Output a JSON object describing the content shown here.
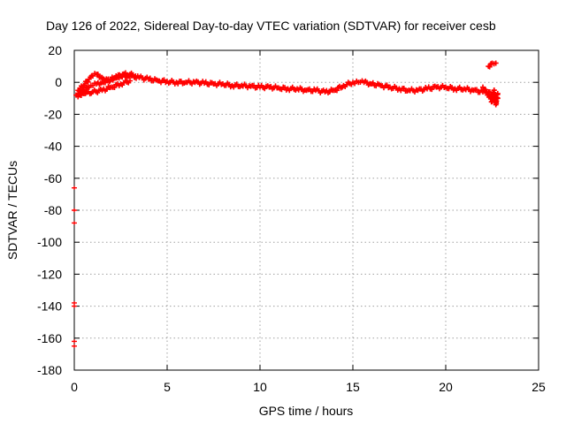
{
  "chart_data": {
    "type": "scatter",
    "title": "Day 126 of 2022, Sidereal Day-to-day VTEC variation (SDTVAR) for receiver cesb",
    "xlabel": "GPS time / hours",
    "ylabel": "SDTVAR / TECUs",
    "xlim": [
      0,
      25
    ],
    "ylim": [
      -180,
      20
    ],
    "xticks": [
      0,
      5,
      10,
      15,
      20,
      25
    ],
    "yticks": [
      20,
      0,
      -20,
      -40,
      -60,
      -80,
      -100,
      -120,
      -140,
      -160,
      -180
    ],
    "xtick_labels": [
      "0",
      "5",
      "10",
      "15",
      "20",
      "25"
    ],
    "ytick_labels": [
      "20",
      "0",
      "-20",
      "-40",
      "-60",
      "-80",
      "-100",
      "-120",
      "-140",
      "-160",
      "-180"
    ],
    "grid": true,
    "marker": "plus",
    "series": [
      {
        "name": "main-trace",
        "color": "#ff0000",
        "x": [
          0.2,
          0.5,
          0.8,
          1.0,
          1.2,
          1.5,
          2.0,
          2.5,
          3.0,
          3.5,
          4.0,
          4.5,
          5.0,
          5.5,
          6.0,
          6.5,
          7.0,
          7.5,
          8.0,
          8.5,
          9.0,
          9.5,
          10.0,
          10.5,
          11.0,
          11.5,
          12.0,
          12.5,
          13.0,
          13.5,
          14.0,
          14.5,
          15.0,
          15.3,
          15.6,
          16.0,
          16.5,
          17.0,
          17.5,
          18.0,
          18.5,
          19.0,
          19.5,
          20.0,
          20.5,
          21.0,
          21.5,
          22.0,
          22.3,
          22.6,
          22.8
        ],
        "y": [
          -7,
          -5,
          -3,
          -2,
          -1,
          0,
          2,
          4,
          4,
          3,
          2,
          1,
          0.5,
          0,
          0,
          0,
          -0.5,
          -1,
          -1,
          -2,
          -2,
          -2.5,
          -3,
          -3,
          -3.5,
          -4,
          -4,
          -5,
          -5,
          -6,
          -5,
          -2,
          0,
          0,
          0,
          -1,
          -2,
          -3,
          -4,
          -5,
          -5,
          -4,
          -3,
          -3,
          -4,
          -4,
          -5,
          -6,
          -6,
          -8,
          -10
        ]
      },
      {
        "name": "early-upper-branch",
        "color": "#ff0000",
        "x": [
          0.2,
          0.5,
          0.8,
          1.0,
          1.2,
          1.5,
          1.8,
          2.2,
          2.6,
          3.0,
          3.3
        ],
        "y": [
          -5,
          -2,
          2,
          4,
          5,
          3,
          1,
          3,
          5,
          5,
          4
        ]
      },
      {
        "name": "early-lower-branch",
        "color": "#ff0000",
        "x": [
          0.1,
          0.3,
          0.6,
          1.0,
          1.5,
          2.0,
          2.5,
          3.0
        ],
        "y": [
          -8,
          -8,
          -7,
          -6,
          -5,
          -3,
          -1,
          1
        ]
      },
      {
        "name": "late-spikes",
        "color": "#ff0000",
        "x": [
          22.0,
          22.3,
          22.5,
          22.6,
          22.7,
          22.8
        ],
        "y": [
          -3,
          -8,
          -12,
          -5,
          -14,
          -7
        ]
      },
      {
        "name": "late-positive-cluster",
        "color": "#ff0000",
        "x": [
          22.3,
          22.5,
          22.7
        ],
        "y": [
          10,
          12,
          12
        ]
      },
      {
        "name": "outliers-at-zero",
        "color": "#ff0000",
        "x": [
          0,
          0,
          0,
          0,
          0,
          0,
          0
        ],
        "y": [
          -66,
          -80,
          -88,
          -138,
          -140,
          -162,
          -165
        ]
      }
    ]
  }
}
